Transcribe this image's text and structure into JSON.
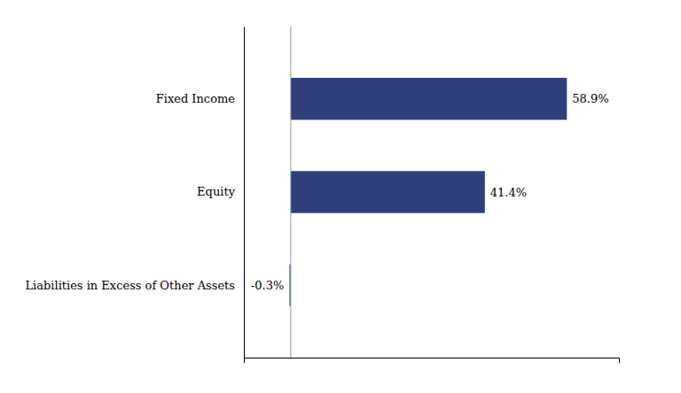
{
  "chart_data": {
    "type": "bar",
    "orientation": "horizontal",
    "categories": [
      "Fixed Income",
      "Equity",
      "Liabilities in Excess of Other Assets"
    ],
    "values": [
      58.9,
      41.4,
      -0.3
    ],
    "value_labels": [
      "58.9%",
      "41.4%",
      "-0.3%"
    ],
    "data_labels": true,
    "colors": [
      "#2e3f7c",
      "#2e3f7c",
      "#4a6db5"
    ],
    "xlim": [
      -10,
      70
    ],
    "tick_labels": "y"
  }
}
